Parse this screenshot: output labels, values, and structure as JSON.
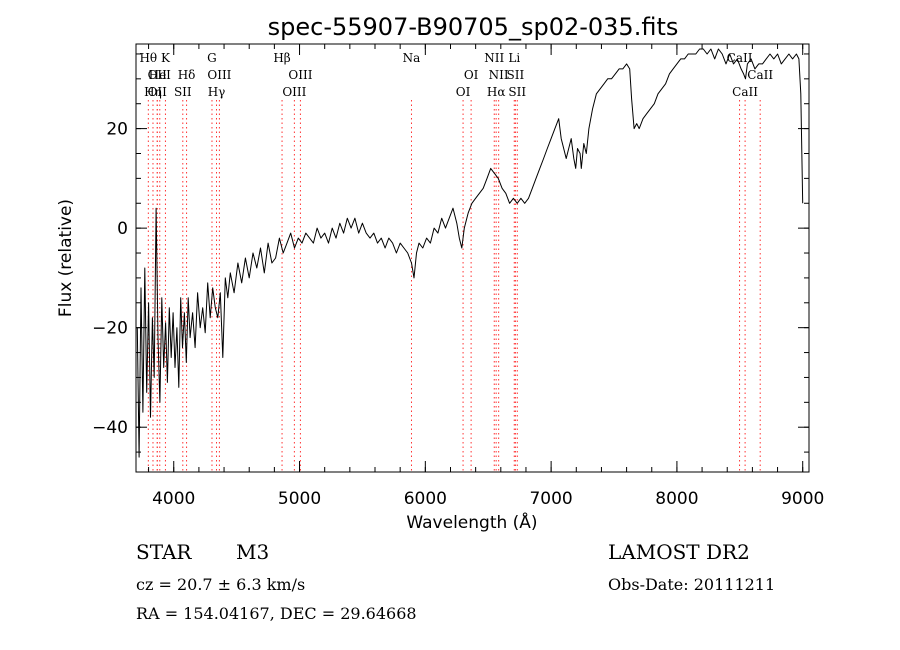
{
  "chart_data": {
    "type": "line",
    "title": "spec-55907-B90705_sp02-035.fits",
    "xlabel": "Wavelength (Å)",
    "ylabel": "Flux (relative)",
    "xlim": [
      3700,
      9050
    ],
    "ylim": [
      -49,
      37
    ],
    "x_ticks": [
      4000,
      5000,
      6000,
      7000,
      8000,
      9000
    ],
    "y_ticks": [
      -40,
      -20,
      0,
      20
    ],
    "x_minor_step": 200,
    "y_minor_step": 5,
    "grid": false,
    "line_color": "#000000",
    "marker_color": "#ff3333",
    "series": [
      {
        "points": [
          [
            3710,
            -20
          ],
          [
            3725,
            -46
          ],
          [
            3740,
            -12
          ],
          [
            3755,
            -37
          ],
          [
            3770,
            -8
          ],
          [
            3785,
            -33
          ],
          [
            3800,
            -15
          ],
          [
            3815,
            -38
          ],
          [
            3830,
            -18
          ],
          [
            3845,
            -30
          ],
          [
            3860,
            4
          ],
          [
            3875,
            -22
          ],
          [
            3890,
            -35
          ],
          [
            3905,
            -14
          ],
          [
            3920,
            -28
          ],
          [
            3935,
            -19
          ],
          [
            3950,
            -31
          ],
          [
            3965,
            -16
          ],
          [
            3980,
            -26
          ],
          [
            3995,
            -17
          ],
          [
            4010,
            -28
          ],
          [
            4025,
            -20
          ],
          [
            4040,
            -32
          ],
          [
            4055,
            -14
          ],
          [
            4070,
            -24
          ],
          [
            4085,
            -17
          ],
          [
            4100,
            -27
          ],
          [
            4115,
            -14
          ],
          [
            4130,
            -22
          ],
          [
            4150,
            -17
          ],
          [
            4170,
            -24
          ],
          [
            4190,
            -13
          ],
          [
            4210,
            -20
          ],
          [
            4230,
            -16
          ],
          [
            4250,
            -21
          ],
          [
            4270,
            -11
          ],
          [
            4290,
            -18
          ],
          [
            4310,
            -12
          ],
          [
            4330,
            -16
          ],
          [
            4350,
            -18
          ],
          [
            4370,
            -13
          ],
          [
            4390,
            -26
          ],
          [
            4410,
            -10
          ],
          [
            4430,
            -14
          ],
          [
            4450,
            -9
          ],
          [
            4480,
            -13
          ],
          [
            4510,
            -7
          ],
          [
            4540,
            -11
          ],
          [
            4570,
            -6
          ],
          [
            4600,
            -10
          ],
          [
            4630,
            -5
          ],
          [
            4660,
            -8
          ],
          [
            4690,
            -4
          ],
          [
            4720,
            -9
          ],
          [
            4750,
            -3
          ],
          [
            4780,
            -7
          ],
          [
            4810,
            -6
          ],
          [
            4840,
            -2
          ],
          [
            4870,
            -5
          ],
          [
            4900,
            -3
          ],
          [
            4930,
            -1
          ],
          [
            4960,
            -4
          ],
          [
            4990,
            -2
          ],
          [
            5020,
            -3
          ],
          [
            5050,
            -1
          ],
          [
            5080,
            -2
          ],
          [
            5110,
            -3
          ],
          [
            5140,
            0
          ],
          [
            5170,
            -2
          ],
          [
            5200,
            -1
          ],
          [
            5230,
            -3
          ],
          [
            5260,
            0
          ],
          [
            5290,
            -2
          ],
          [
            5320,
            1
          ],
          [
            5350,
            -1
          ],
          [
            5380,
            2
          ],
          [
            5410,
            0
          ],
          [
            5440,
            2
          ],
          [
            5470,
            -1
          ],
          [
            5500,
            1
          ],
          [
            5530,
            -1
          ],
          [
            5560,
            -2
          ],
          [
            5590,
            -1
          ],
          [
            5620,
            -3
          ],
          [
            5650,
            -2
          ],
          [
            5680,
            -4
          ],
          [
            5710,
            -2
          ],
          [
            5740,
            -3
          ],
          [
            5770,
            -5
          ],
          [
            5800,
            -3
          ],
          [
            5830,
            -4
          ],
          [
            5860,
            -5
          ],
          [
            5890,
            -7
          ],
          [
            5910,
            -10
          ],
          [
            5930,
            -5
          ],
          [
            5950,
            -3
          ],
          [
            5980,
            -4
          ],
          [
            6010,
            -2
          ],
          [
            6040,
            -3
          ],
          [
            6070,
            0
          ],
          [
            6100,
            -1
          ],
          [
            6130,
            2
          ],
          [
            6160,
            0
          ],
          [
            6190,
            2
          ],
          [
            6220,
            4
          ],
          [
            6250,
            1
          ],
          [
            6270,
            -2
          ],
          [
            6290,
            -4
          ],
          [
            6310,
            0
          ],
          [
            6340,
            3
          ],
          [
            6370,
            5
          ],
          [
            6400,
            6
          ],
          [
            6430,
            7
          ],
          [
            6460,
            8
          ],
          [
            6490,
            10
          ],
          [
            6520,
            12
          ],
          [
            6550,
            11
          ],
          [
            6580,
            10
          ],
          [
            6610,
            8
          ],
          [
            6640,
            7
          ],
          [
            6670,
            5
          ],
          [
            6700,
            6
          ],
          [
            6730,
            5
          ],
          [
            6760,
            6
          ],
          [
            6790,
            5
          ],
          [
            6820,
            6
          ],
          [
            6850,
            8
          ],
          [
            6880,
            10
          ],
          [
            6910,
            12
          ],
          [
            6940,
            14
          ],
          [
            6970,
            16
          ],
          [
            7000,
            18
          ],
          [
            7030,
            20
          ],
          [
            7060,
            22
          ],
          [
            7080,
            18
          ],
          [
            7100,
            16
          ],
          [
            7120,
            14
          ],
          [
            7140,
            16
          ],
          [
            7160,
            18
          ],
          [
            7180,
            14
          ],
          [
            7195,
            12
          ],
          [
            7210,
            16
          ],
          [
            7230,
            15
          ],
          [
            7240,
            12
          ],
          [
            7260,
            17
          ],
          [
            7280,
            15
          ],
          [
            7300,
            20
          ],
          [
            7330,
            24
          ],
          [
            7360,
            27
          ],
          [
            7390,
            28
          ],
          [
            7420,
            29
          ],
          [
            7450,
            30
          ],
          [
            7480,
            30
          ],
          [
            7510,
            31
          ],
          [
            7540,
            32
          ],
          [
            7570,
            32
          ],
          [
            7600,
            33
          ],
          [
            7625,
            32
          ],
          [
            7640,
            26
          ],
          [
            7660,
            20
          ],
          [
            7680,
            21
          ],
          [
            7700,
            20
          ],
          [
            7730,
            22
          ],
          [
            7760,
            23
          ],
          [
            7790,
            24
          ],
          [
            7820,
            25
          ],
          [
            7850,
            27
          ],
          [
            7880,
            28
          ],
          [
            7910,
            29
          ],
          [
            7940,
            31
          ],
          [
            7970,
            32
          ],
          [
            8000,
            33
          ],
          [
            8030,
            34
          ],
          [
            8060,
            34
          ],
          [
            8090,
            35
          ],
          [
            8120,
            35
          ],
          [
            8150,
            35
          ],
          [
            8180,
            36
          ],
          [
            8210,
            36
          ],
          [
            8240,
            35
          ],
          [
            8270,
            36
          ],
          [
            8300,
            34
          ],
          [
            8330,
            36
          ],
          [
            8360,
            35
          ],
          [
            8390,
            33
          ],
          [
            8420,
            35
          ],
          [
            8450,
            33
          ],
          [
            8480,
            34
          ],
          [
            8510,
            32
          ],
          [
            8530,
            31
          ],
          [
            8545,
            30
          ],
          [
            8560,
            33
          ],
          [
            8590,
            34
          ],
          [
            8620,
            32
          ],
          [
            8650,
            33
          ],
          [
            8680,
            33
          ],
          [
            8710,
            34
          ],
          [
            8740,
            35
          ],
          [
            8770,
            34
          ],
          [
            8800,
            35
          ],
          [
            8830,
            33
          ],
          [
            8860,
            34
          ],
          [
            8890,
            35
          ],
          [
            8920,
            34
          ],
          [
            8950,
            35
          ],
          [
            8970,
            34
          ],
          [
            8985,
            27
          ],
          [
            9000,
            5
          ]
        ]
      }
    ],
    "line_markers": [
      {
        "x": 3798,
        "label": "Hθ",
        "row": 0
      },
      {
        "x": 3835,
        "label": "Hη",
        "row": 2
      },
      {
        "x": 3869,
        "label": "OII",
        "row": 1
      },
      {
        "x": 3869,
        "label": "OII",
        "row": 2
      },
      {
        "x": 3889,
        "label": "HeI",
        "row": 1
      },
      {
        "x": 3934,
        "label": "K",
        "row": 0
      },
      {
        "x": 4072,
        "label": "SII",
        "row": 2
      },
      {
        "x": 4102,
        "label": "Hδ",
        "row": 1
      },
      {
        "x": 4304,
        "label": "G",
        "row": 0
      },
      {
        "x": 4340,
        "label": "Hγ",
        "row": 2
      },
      {
        "x": 4363,
        "label": "OIII",
        "row": 1
      },
      {
        "x": 4861,
        "label": "Hβ",
        "row": 0
      },
      {
        "x": 4959,
        "label": "OIII",
        "row": 2
      },
      {
        "x": 5007,
        "label": "OIII",
        "row": 1
      },
      {
        "x": 5890,
        "label": "Na",
        "row": 0
      },
      {
        "x": 6300,
        "label": "OI",
        "row": 2
      },
      {
        "x": 6364,
        "label": "OI",
        "row": 1
      },
      {
        "x": 6548,
        "label": "NII",
        "row": 0
      },
      {
        "x": 6563,
        "label": "Hα",
        "row": 2
      },
      {
        "x": 6583,
        "label": "NII",
        "row": 1
      },
      {
        "x": 6707,
        "label": "Li",
        "row": 0
      },
      {
        "x": 6716,
        "label": "SII",
        "row": 1
      },
      {
        "x": 6731,
        "label": "SII",
        "row": 2
      },
      {
        "x": 8498,
        "label": "CaII",
        "row": 0
      },
      {
        "x": 8542,
        "label": "CaII",
        "row": 2
      },
      {
        "x": 8662,
        "label": "CaII",
        "row": 1
      }
    ]
  },
  "info": {
    "object_class": "STAR",
    "object_subclass": "M3",
    "cz_line": "cz = 20.7 ± 6.3 km/s",
    "coord_line": "RA = 154.04167, DEC =  29.64668",
    "survey": "LAMOST DR2",
    "obs_date": "Obs-Date: 20111211"
  }
}
